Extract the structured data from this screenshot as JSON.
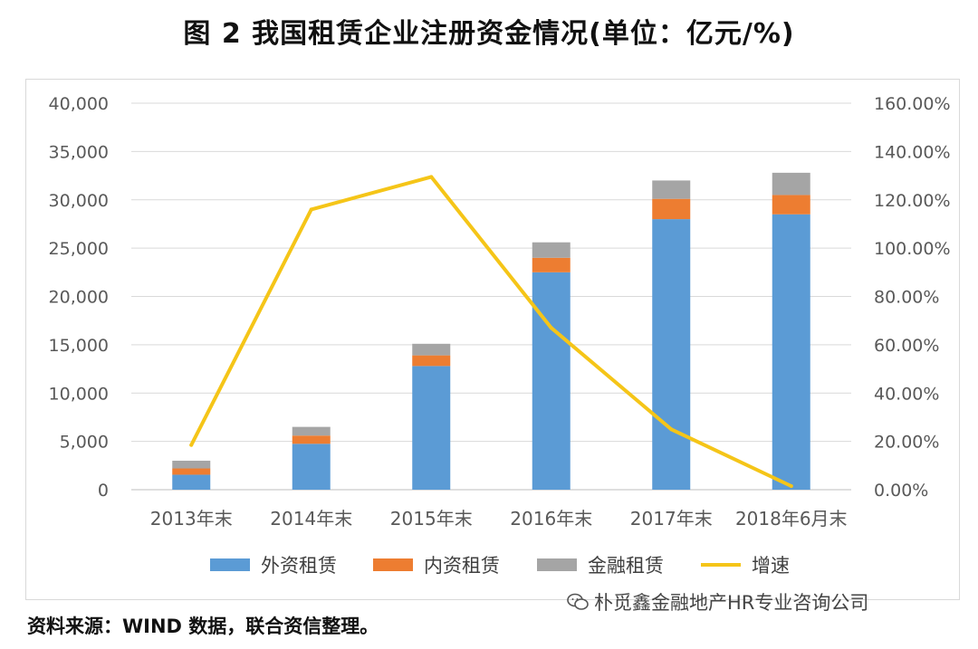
{
  "title": "图 2   我国租赁企业注册资金情况(单位：亿元/%)",
  "source": "资料来源：WIND 数据，联合资信整理。",
  "watermark": "朴觅鑫金融地产HR专业咨询公司",
  "colors": {
    "foreign": "#5B9BD5",
    "domestic": "#ED7D31",
    "financial": "#A5A5A5",
    "growth": "#F5C518",
    "grid": "#d9d9d9",
    "tick": "#595959"
  },
  "chart_data": {
    "type": "bar",
    "stacked": true,
    "categories": [
      "2013年末",
      "2014年末",
      "2015年末",
      "2016年末",
      "2017年末",
      "2018年6月末"
    ],
    "series": [
      {
        "name": "外资租赁",
        "key": "foreign",
        "values": [
          1550,
          4750,
          12800,
          22500,
          28000,
          28500
        ]
      },
      {
        "name": "内资租赁",
        "key": "domestic",
        "values": [
          650,
          850,
          1100,
          1500,
          2100,
          2000
        ]
      },
      {
        "name": "金融租赁",
        "key": "financial",
        "values": [
          800,
          900,
          1200,
          1600,
          1900,
          2300
        ]
      }
    ],
    "line": {
      "name": "增速",
      "key": "growth",
      "axis": "right",
      "values": [
        18.5,
        116.0,
        129.5,
        67.0,
        25.0,
        1.5
      ]
    },
    "y_left": {
      "min": 0,
      "max": 40000,
      "ticks": [
        "0",
        "5,000",
        "10,000",
        "15,000",
        "20,000",
        "25,000",
        "30,000",
        "35,000",
        "40,000"
      ]
    },
    "y_right": {
      "min": 0,
      "max": 160,
      "ticks": [
        "0.00%",
        "20.00%",
        "40.00%",
        "60.00%",
        "80.00%",
        "100.00%",
        "120.00%",
        "140.00%",
        "160.00%"
      ]
    },
    "legend": [
      "外资租赁",
      "内资租赁",
      "金融租赁",
      "增速"
    ],
    "legend_position": "bottom",
    "grid": true
  }
}
